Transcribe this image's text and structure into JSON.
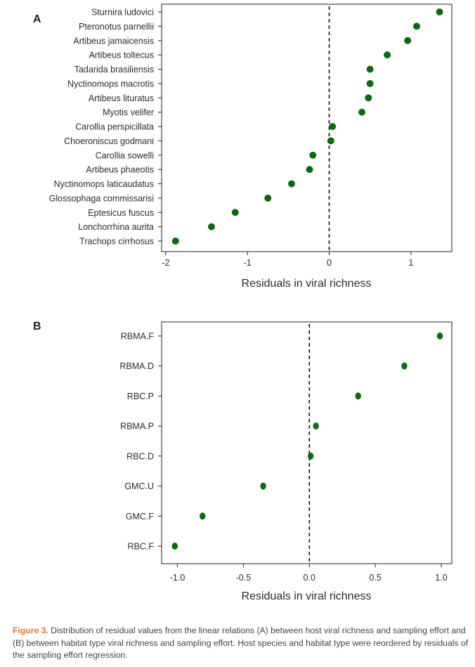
{
  "colors": {
    "point": "#0d6a10",
    "axis": "#222222",
    "text": "#2b2b2b",
    "caption_label": "#e8763a",
    "caption_text": "#444444"
  },
  "chart_data": [
    {
      "panel": "A",
      "type": "scatter",
      "orientation": "horizontal dot plot",
      "xlabel": "Residuals in viral richness",
      "xlim": [
        -2.05,
        1.5
      ],
      "xticks": [
        -2,
        -1,
        0,
        1
      ],
      "xtick_labels": [
        "-2",
        "-1",
        "0",
        "1"
      ],
      "reference_line_x": 0,
      "categories": [
        "Sturnira ludovici",
        "Pteronotus parnellii",
        "Artibeus jamaicensis",
        "Artibeus toltecus",
        "Tadarida brasiliensis",
        "Nyctinomops macrotis",
        "Artibeus lituratus",
        "Myotis velifer",
        "Carollia perspicillata",
        "Choeroniscus godmani",
        "Carollia sowelli",
        "Artibeus phaeotis",
        "Nyctinomops laticaudatus",
        "Glossophaga commissarisi",
        "Eptesicus fuscus",
        "Lonchorrhina aurita",
        "Trachops cirrhosus"
      ],
      "values": [
        1.35,
        1.07,
        0.96,
        0.71,
        0.5,
        0.5,
        0.48,
        0.4,
        0.04,
        0.02,
        -0.2,
        -0.24,
        -0.46,
        -0.75,
        -1.15,
        -1.44,
        -1.88
      ]
    },
    {
      "panel": "B",
      "type": "scatter",
      "orientation": "horizontal dot plot",
      "xlabel": "Residuals in viral richness",
      "xlim": [
        -1.12,
        1.08
      ],
      "xticks": [
        -1.0,
        -0.5,
        0.0,
        0.5,
        1.0
      ],
      "xtick_labels": [
        "-1.0",
        "-0.5",
        "0.0",
        "0.5",
        "1.0"
      ],
      "reference_line_x": 0,
      "categories": [
        "RBMA.F",
        "RBMA.D",
        "RBC.P",
        "RBMA.P",
        "RBC.D",
        "GMC.U",
        "GMC.F",
        "RBC.F"
      ],
      "values": [
        0.99,
        0.72,
        0.37,
        0.05,
        0.01,
        -0.35,
        -0.81,
        -1.02
      ]
    }
  ],
  "caption": {
    "label": "Figure 3.",
    "text": " Distribution of residual values from the linear relations (A) between host viral richness and sampling effort and (B) between habitat type viral richness and sampling effort. Host species and habitat type were reordered by residuals of the sampling effort regression."
  }
}
